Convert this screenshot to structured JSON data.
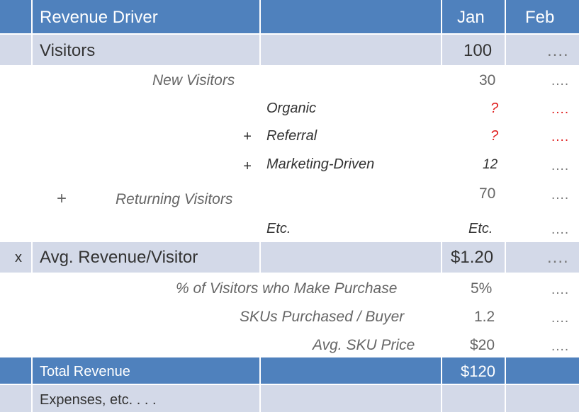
{
  "header": {
    "col1": "Revenue Driver",
    "jan": "Jan",
    "feb": "Feb"
  },
  "visitors": {
    "label": "Visitors",
    "jan": "100",
    "feb": "...."
  },
  "new_visitors": {
    "label": "New  Visitors",
    "jan": "30",
    "feb": "...."
  },
  "organic": {
    "label": "Organic",
    "jan": "?",
    "feb": "...."
  },
  "referral": {
    "op": "+",
    "label": "Referral",
    "jan": "?",
    "feb": "...."
  },
  "marketing": {
    "op": "+",
    "label": "Marketing-Driven",
    "jan": "12",
    "feb": "...."
  },
  "returning": {
    "op": "+",
    "label": "Returning Visitors",
    "jan": "70",
    "feb": "...."
  },
  "etc": {
    "label": "Etc.",
    "jan": "Etc.",
    "feb": "...."
  },
  "avg_rev": {
    "op": "x",
    "label": "Avg. Revenue/Visitor",
    "jan": "$1.20",
    "feb": "...."
  },
  "pct_purchase": {
    "label": "% of Visitors who Make Purchase",
    "jan": "5%",
    "feb": "...."
  },
  "skus": {
    "label": "SKUs Purchased / Buyer",
    "jan": "1.2",
    "feb": "...."
  },
  "sku_price": {
    "label": "Avg. SKU Price",
    "jan": "$20",
    "feb": "...."
  },
  "total": {
    "label": "Total Revenue",
    "jan": "$120"
  },
  "expenses": {
    "label": "Expenses, etc. . . ."
  },
  "colors": {
    "header": "#4f81bd",
    "light_band": "#d3d9e8",
    "question": "#e02020"
  }
}
